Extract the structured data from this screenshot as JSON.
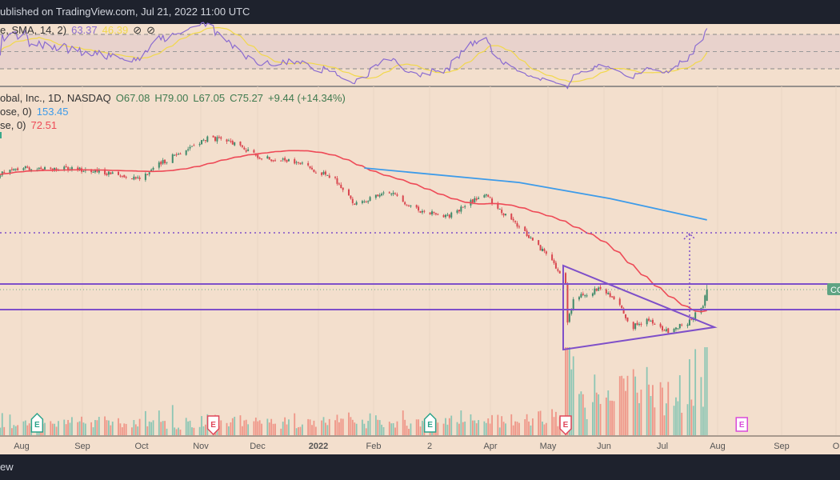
{
  "header": {
    "published": "ublished on TradingView.com, Jul 21, 2022 11:00 UTC"
  },
  "footer": {
    "brand": "ew"
  },
  "legend": {
    "rsi": {
      "label": "e, SMA, 14, 2)",
      "value": "63.37",
      "sma": "46.39",
      "icons": [
        "eye-off-icon",
        "eye-off-icon"
      ]
    },
    "main": {
      "label": "obal, Inc., 1D, NASDAQ",
      "open": "O67.08",
      "high": "H79.00",
      "low": "L67.05",
      "close": "C75.27",
      "change": "+9.44 (+14.34%)"
    },
    "ma200": {
      "label": "ose, 0)",
      "value": "153.45"
    },
    "ma50": {
      "label": "se, 0)",
      "value": "72.51"
    }
  },
  "price_label": "CO",
  "colors": {
    "up": "#3f8a6a",
    "down": "#d9464f",
    "vol_up": "#8cc6b4",
    "vol_down": "#ef9688",
    "ma200": "#3d9be9",
    "ma50": "#ee4a57",
    "rsi": "#8a6bd1",
    "rsi_sma": "#f2d84b",
    "pattern": "#7e4fc9",
    "bg": "#f3dfcd"
  },
  "chart_data": {
    "type": "candlestick",
    "scale": "log",
    "x_ticks": [
      "Aug",
      "Sep",
      "Oct",
      "Nov",
      "Dec",
      "2022",
      "Feb",
      "2",
      "Apr",
      "May",
      "Jun",
      "Jul",
      "Aug",
      "Sep",
      "O"
    ],
    "close_path": [
      [
        "2021-07-15",
        240
      ],
      [
        "2021-08-02",
        261
      ],
      [
        "2021-09-01",
        257
      ],
      [
        "2021-10-01",
        237
      ],
      [
        "2021-10-18",
        295
      ],
      [
        "2021-11-06",
        356
      ],
      [
        "2021-11-20",
        334
      ],
      [
        "2021-11-30",
        295
      ],
      [
        "2021-12-24",
        272
      ],
      [
        "2022-01-10",
        231
      ],
      [
        "2022-01-20",
        181
      ],
      [
        "2022-02-08",
        204
      ],
      [
        "2022-02-20",
        171
      ],
      [
        "2022-03-10",
        160
      ],
      [
        "2022-03-28",
        201
      ],
      [
        "2022-04-06",
        166
      ],
      [
        "2022-04-20",
        130
      ],
      [
        "2022-04-30",
        106
      ],
      [
        "2022-05-09",
        80
      ],
      [
        "2022-05-10",
        53
      ],
      [
        "2022-05-13",
        68
      ],
      [
        "2022-05-27",
        76
      ],
      [
        "2022-06-06",
        65
      ],
      [
        "2022-06-12",
        51
      ],
      [
        "2022-06-20",
        55
      ],
      [
        "2022-06-30",
        49
      ],
      [
        "2022-07-12",
        54
      ],
      [
        "2022-07-19",
        65
      ],
      [
        "2022-07-21",
        75.27
      ]
    ],
    "sma200_path": [
      [
        "2022-01-25",
        261
      ],
      [
        "2022-04-15",
        225
      ],
      [
        "2022-06-01",
        191
      ],
      [
        "2022-07-21",
        153.45
      ]
    ],
    "last": {
      "open": 67.08,
      "high": 79.0,
      "low": 67.05,
      "close": 75.27,
      "sma50": 72.51,
      "sma200": 153.45
    },
    "rsi": {
      "period": 14,
      "last": 63.37,
      "sma": 46.39,
      "bands": [
        70,
        50,
        30
      ]
    },
    "earnings": [
      {
        "date": "2021-08-09",
        "label": "E",
        "kind": "beat"
      },
      {
        "date": "2021-11-08",
        "label": "E",
        "kind": "miss"
      },
      {
        "date": "2022-02-28",
        "label": "E",
        "kind": "beat"
      },
      {
        "date": "2022-05-09",
        "label": "E",
        "kind": "miss"
      },
      {
        "date": "2022-08-08",
        "label": "E",
        "kind": "upcoming"
      }
    ],
    "pattern": {
      "type": "symmetrical-triangle",
      "apex_date": "2022-07-31",
      "start_date": "2022-05-09",
      "upper_start": 106,
      "lower_start": 41,
      "resistance": 80,
      "support": 62,
      "target": 130
    }
  }
}
